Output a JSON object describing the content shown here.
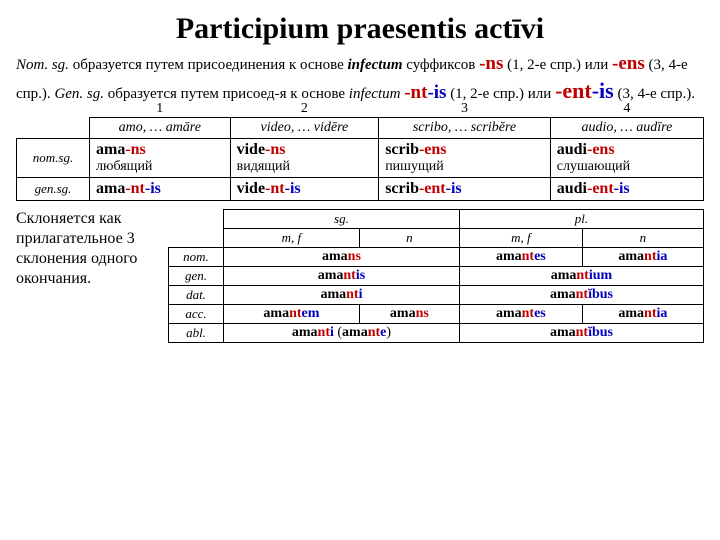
{
  "title": "Participium praesentis actīvi",
  "intro_parts": {
    "p1a": "Nom. sg.",
    "p1b": " образуется путем присоединения к основе ",
    "p1c": "infectum",
    "p1d": " суффиксов ",
    "ns": "-ns",
    "p1e": " (1, 2-е спр.) или ",
    "ens": "-ens",
    "p1f": " (3, 4-е спр.). ",
    "p2a": "Gen. sg.",
    "p2b": " образуется путем присоед-я к основе ",
    "p2c": "infectum",
    "nt": "-nt",
    "is": "-is",
    "p2d": " (1, 2-е спр.) или ",
    "ent": "-ent",
    "p2e": " (3, 4-е спр.)."
  },
  "t1": {
    "nums": [
      "1",
      "2",
      "3",
      "4"
    ],
    "examples": [
      "amo, … amāre",
      "video, … vidēre",
      "scribo, … scribĕre",
      "audio, … audīre"
    ],
    "row_labels": [
      "nom.sg.",
      "gen.sg."
    ],
    "nom": [
      {
        "stem": "ama",
        "suf": "-ns",
        "gloss": "любящий"
      },
      {
        "stem": "vide",
        "suf": "-ns",
        "gloss": "видящий"
      },
      {
        "stem": "scrib",
        "suf": "-ens",
        "gloss": "пишущий"
      },
      {
        "stem": "audi",
        "suf": "-ens",
        "gloss": "слушающий"
      }
    ],
    "gen": [
      {
        "stem": "ama",
        "mid": "-nt",
        "end": "-is"
      },
      {
        "stem": "vide",
        "mid": "-nt",
        "end": "-is"
      },
      {
        "stem": "scrib",
        "mid": "-ent",
        "end": "-is"
      },
      {
        "stem": "audi",
        "mid": "-ent",
        "end": "-is"
      }
    ]
  },
  "sidenote": "Склоняется как прилагательное 3 склонения одного окончания.",
  "t2": {
    "sg": "sg.",
    "pl": "pl.",
    "mf": "m, f",
    "n": "n",
    "cases": [
      "nom.",
      "gen.",
      "dat.",
      "acc.",
      "abl."
    ],
    "cells": {
      "nom_sg": {
        "pre": "ama",
        "r": "ns"
      },
      "nom_pl_mf": {
        "pre": "ama",
        "r": "nt",
        "b": "es"
      },
      "nom_pl_n": {
        "pre": "ama",
        "r": "nt",
        "b": "ia"
      },
      "gen_sg": {
        "pre": "ama",
        "r": "nt",
        "b": "is"
      },
      "gen_pl": {
        "pre": "ama",
        "r": "nt",
        "b": "ium"
      },
      "dat_sg": {
        "pre": "ama",
        "r": "nt",
        "b": "i"
      },
      "dat_pl": {
        "pre": "ama",
        "r": "nt",
        "b": "ĭbus"
      },
      "acc_sg_mf": {
        "pre": "ama",
        "r": "nt",
        "b": "em"
      },
      "acc_sg_n": {
        "pre": "ama",
        "r": "ns"
      },
      "acc_pl_mf": {
        "pre": "ama",
        "r": "nt",
        "b": "es"
      },
      "acc_pl_n": {
        "pre": "ama",
        "r": "nt",
        "b": "ia"
      },
      "abl_sg1": {
        "pre": "ama",
        "r": "nt",
        "b": "i"
      },
      "abl_sg2_open": " (",
      "abl_sg2": {
        "pre": "ama",
        "r": "nt",
        "b": "e"
      },
      "abl_sg2_close": ")",
      "abl_pl": {
        "pre": "ama",
        "r": "nt",
        "b": "ĭbus"
      }
    }
  },
  "colors": {
    "red": "#c00000",
    "blue": "#0000c0"
  }
}
